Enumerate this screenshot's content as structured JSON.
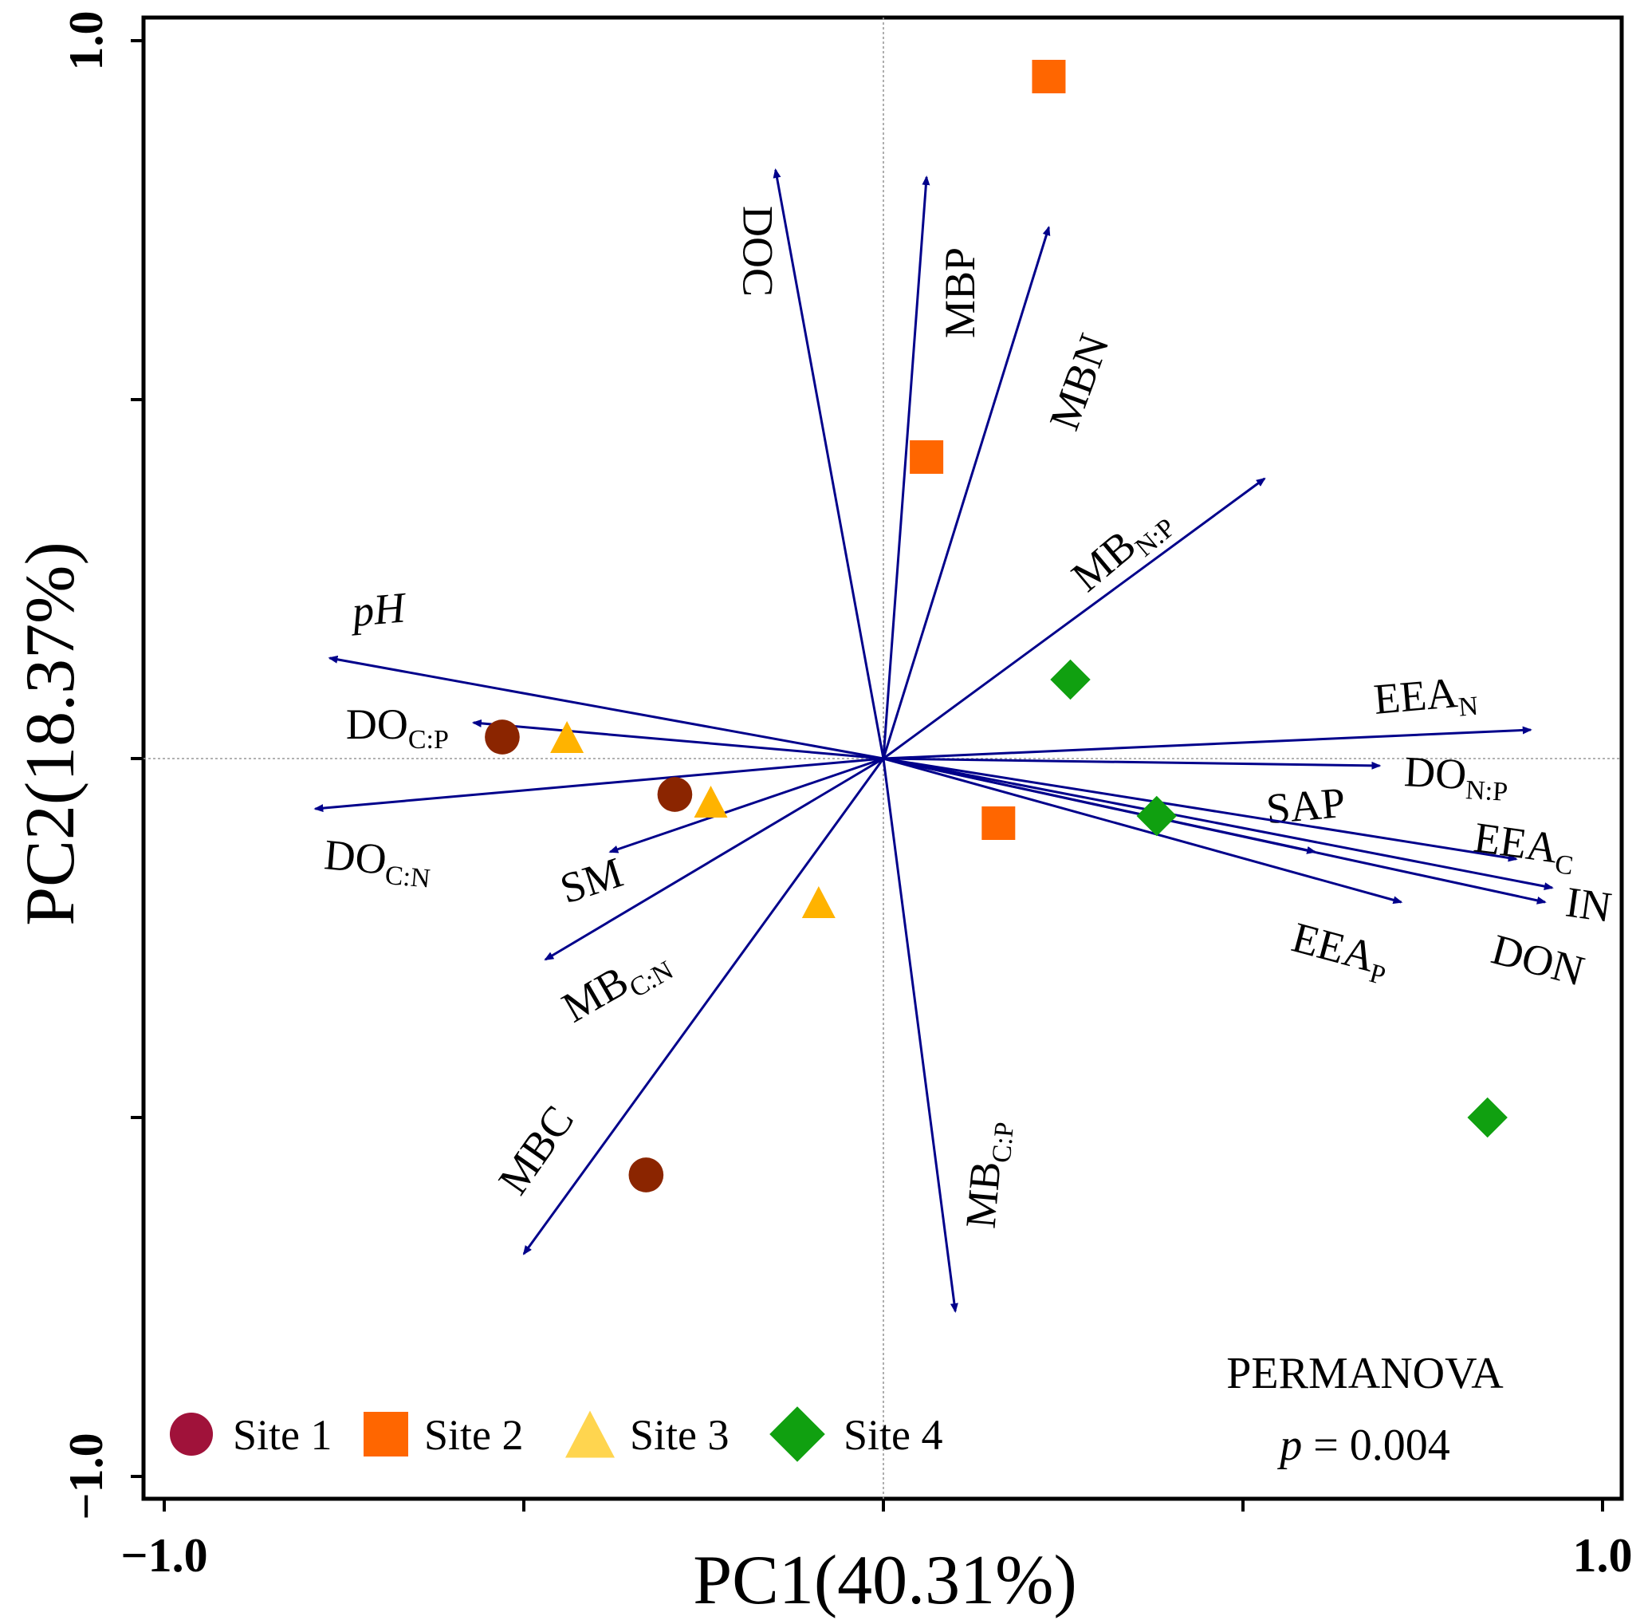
{
  "chart_data": {
    "type": "scatter",
    "subtype": "pca-biplot",
    "xlabel": "PC1(40.31%)",
    "ylabel": "PC2(18.37%)",
    "xlim": [
      -1.02,
      1.0
    ],
    "ylim": [
      -1.02,
      1.0
    ],
    "x_ticks": [
      {
        "value": -1.0,
        "label": "−1.0"
      },
      {
        "value": -0.5,
        "label": ""
      },
      {
        "value": 0.0,
        "label": ""
      },
      {
        "value": 0.5,
        "label": ""
      },
      {
        "value": 1.0,
        "label": "1.0"
      }
    ],
    "y_ticks": [
      {
        "value": -1.0,
        "label": "−1.0"
      },
      {
        "value": -0.5,
        "label": ""
      },
      {
        "value": 0.0,
        "label": ""
      },
      {
        "value": 0.5,
        "label": ""
      },
      {
        "value": 1.0,
        "label": "1.0"
      }
    ],
    "zero_lines": true,
    "arrow_color": "#00008B",
    "vectors": [
      {
        "name": "DOC",
        "main": "DOC",
        "sub": "",
        "x": -0.15,
        "y": 0.82,
        "italic": false
      },
      {
        "name": "MBP",
        "main": "MBP",
        "sub": "",
        "x": 0.06,
        "y": 0.81,
        "italic": false
      },
      {
        "name": "MBN",
        "main": "MBN",
        "sub": "",
        "x": 0.23,
        "y": 0.74,
        "italic": false
      },
      {
        "name": "MB N:P",
        "main": "MB",
        "sub": "N:P",
        "x": 0.53,
        "y": 0.39,
        "italic": false
      },
      {
        "name": "pH",
        "main": "pH",
        "sub": "",
        "x": -0.77,
        "y": 0.14,
        "italic": true
      },
      {
        "name": "DO C:P",
        "main": "DO",
        "sub": "C:P",
        "x": -0.57,
        "y": 0.05,
        "italic": false
      },
      {
        "name": "DO C:N",
        "main": "DO",
        "sub": "C:N",
        "x": -0.79,
        "y": -0.07,
        "italic": false
      },
      {
        "name": "SM",
        "main": "SM",
        "sub": "",
        "x": -0.38,
        "y": -0.13,
        "italic": false
      },
      {
        "name": "MB C:N",
        "main": "MB",
        "sub": "C:N",
        "x": -0.47,
        "y": -0.28,
        "italic": false
      },
      {
        "name": "MBC",
        "main": "MBC",
        "sub": "",
        "x": -0.5,
        "y": -0.69,
        "italic": false
      },
      {
        "name": "MB C:P",
        "main": "MB",
        "sub": "C:P",
        "x": 0.1,
        "y": -0.77,
        "italic": false
      },
      {
        "name": "EEA N",
        "main": "EEA",
        "sub": "N",
        "x": 0.9,
        "y": 0.04,
        "italic": false
      },
      {
        "name": "DO N:P",
        "main": "DO",
        "sub": "N:P",
        "x": 0.69,
        "y": -0.01,
        "italic": false
      },
      {
        "name": "SAP",
        "main": "SAP",
        "sub": "",
        "x": 0.6,
        "y": -0.13,
        "italic": false
      },
      {
        "name": "EEA C",
        "main": "EEA",
        "sub": "C",
        "x": 0.88,
        "y": -0.14,
        "italic": false
      },
      {
        "name": "IN",
        "main": "IN",
        "sub": "",
        "x": 0.93,
        "y": -0.18,
        "italic": false
      },
      {
        "name": "DON",
        "main": "DON",
        "sub": "",
        "x": 0.92,
        "y": -0.2,
        "italic": false
      },
      {
        "name": "EEA P",
        "main": "EEA",
        "sub": "P",
        "x": 0.72,
        "y": -0.2,
        "italic": false
      }
    ],
    "series": [
      {
        "name": "Site 1",
        "marker": "circle",
        "color": "#8B2500",
        "legend_color": "#A0123A",
        "points": [
          {
            "x": -0.53,
            "y": 0.03
          },
          {
            "x": -0.29,
            "y": -0.05
          },
          {
            "x": -0.33,
            "y": -0.58
          }
        ]
      },
      {
        "name": "Site 2",
        "marker": "square",
        "color": "#FF6600",
        "legend_color": "#FF6600",
        "points": [
          {
            "x": 0.23,
            "y": 0.95
          },
          {
            "x": 0.06,
            "y": 0.42
          },
          {
            "x": 0.16,
            "y": -0.09
          }
        ]
      },
      {
        "name": "Site 3",
        "marker": "triangle",
        "color": "#FFB300",
        "legend_color": "#FFD54F",
        "points": [
          {
            "x": -0.44,
            "y": 0.03
          },
          {
            "x": -0.24,
            "y": -0.06
          },
          {
            "x": -0.09,
            "y": -0.2
          }
        ]
      },
      {
        "name": "Site 4",
        "marker": "diamond",
        "color": "#10A010",
        "legend_color": "#10A010",
        "points": [
          {
            "x": 0.26,
            "y": 0.11
          },
          {
            "x": 0.38,
            "y": -0.08
          },
          {
            "x": 0.84,
            "y": -0.5
          }
        ]
      }
    ],
    "legend": {
      "position": "bottom-left"
    },
    "annotation": {
      "line1": "PERMANOVA",
      "p_symbol": "p",
      "p_text": " = 0.004",
      "position": "bottom-right"
    }
  }
}
